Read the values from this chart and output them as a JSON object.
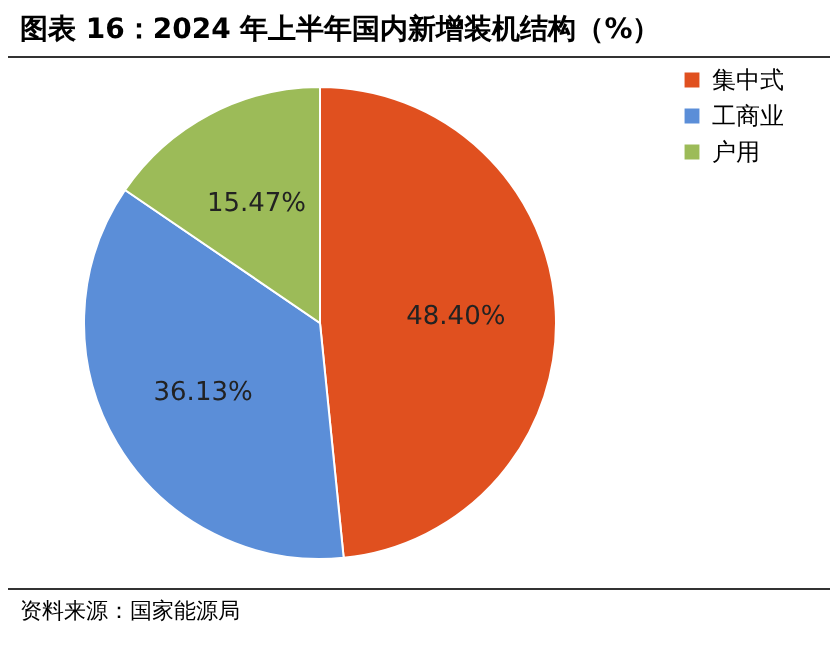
{
  "chart_data": {
    "type": "pie",
    "title": "图表 16：2024 年上半年国内新增装机结构（%）",
    "categories": [
      "集中式",
      "工商业",
      "户用"
    ],
    "values": [
      48.4,
      36.13,
      15.47
    ],
    "value_labels": [
      "48.40%",
      "36.13%",
      "15.47%"
    ],
    "colors": [
      "#e0501f",
      "#5b8ed8",
      "#9cbb58"
    ],
    "legend": "right",
    "annotations": [
      "资料来源：国家能源局"
    ]
  }
}
